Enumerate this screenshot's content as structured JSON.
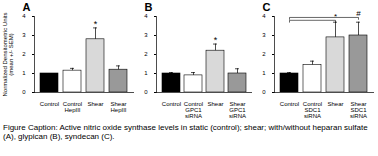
{
  "chart_data": [
    {
      "type": "bar",
      "title": "A",
      "y_label": "Normalized Densitometric Units (mean +/- SEM)",
      "categories": [
        "Control",
        "Control HepIII",
        "Shear",
        "Shear HepIII"
      ],
      "values": [
        1.0,
        1.15,
        2.8,
        1.2
      ],
      "errors": [
        0.0,
        0.12,
        0.6,
        0.2
      ],
      "colors": [
        "#000000",
        "#ffffff",
        "#d9d9d9",
        "#999999"
      ],
      "ylim": [
        0,
        4
      ],
      "yticks": [
        0,
        1,
        2,
        3,
        4
      ],
      "annotations": [
        {
          "category": "Shear",
          "text": "*"
        }
      ]
    },
    {
      "type": "bar",
      "title": "B",
      "categories": [
        "Control",
        "Control GPC1 siRNA",
        "Shear",
        "Shear GPC1 siRNA"
      ],
      "values": [
        1.0,
        0.9,
        2.2,
        1.0
      ],
      "errors": [
        0.05,
        0.15,
        0.35,
        0.25
      ],
      "colors": [
        "#000000",
        "#ffffff",
        "#d9d9d9",
        "#999999"
      ],
      "ylim": [
        0,
        4
      ],
      "yticks": [
        0,
        1,
        2,
        3,
        4
      ],
      "annotations": [
        {
          "category": "Shear",
          "text": "*"
        }
      ]
    },
    {
      "type": "bar",
      "title": "C",
      "categories": [
        "Control",
        "Control SDC1 siRNA",
        "Shear",
        "Shear SDC1 siRNA"
      ],
      "values": [
        1.0,
        1.45,
        2.9,
        3.0
      ],
      "errors": [
        0.05,
        0.2,
        0.8,
        0.7
      ],
      "colors": [
        "#000000",
        "#ffffff",
        "#d9d9d9",
        "#999999"
      ],
      "ylim": [
        0,
        4
      ],
      "yticks": [
        0,
        1,
        2,
        3,
        4
      ],
      "comparisons": [
        {
          "from": "Control",
          "to": "Shear",
          "text": "*"
        },
        {
          "from": "Control",
          "to": "Shear SDC1 siRNA",
          "text": "#"
        }
      ]
    }
  ],
  "caption": "Figure Caption: Active nitric oxide synthase levels in static (control); shear; with/without heparan sulfate (A), glypican (B), syndecan (C)."
}
